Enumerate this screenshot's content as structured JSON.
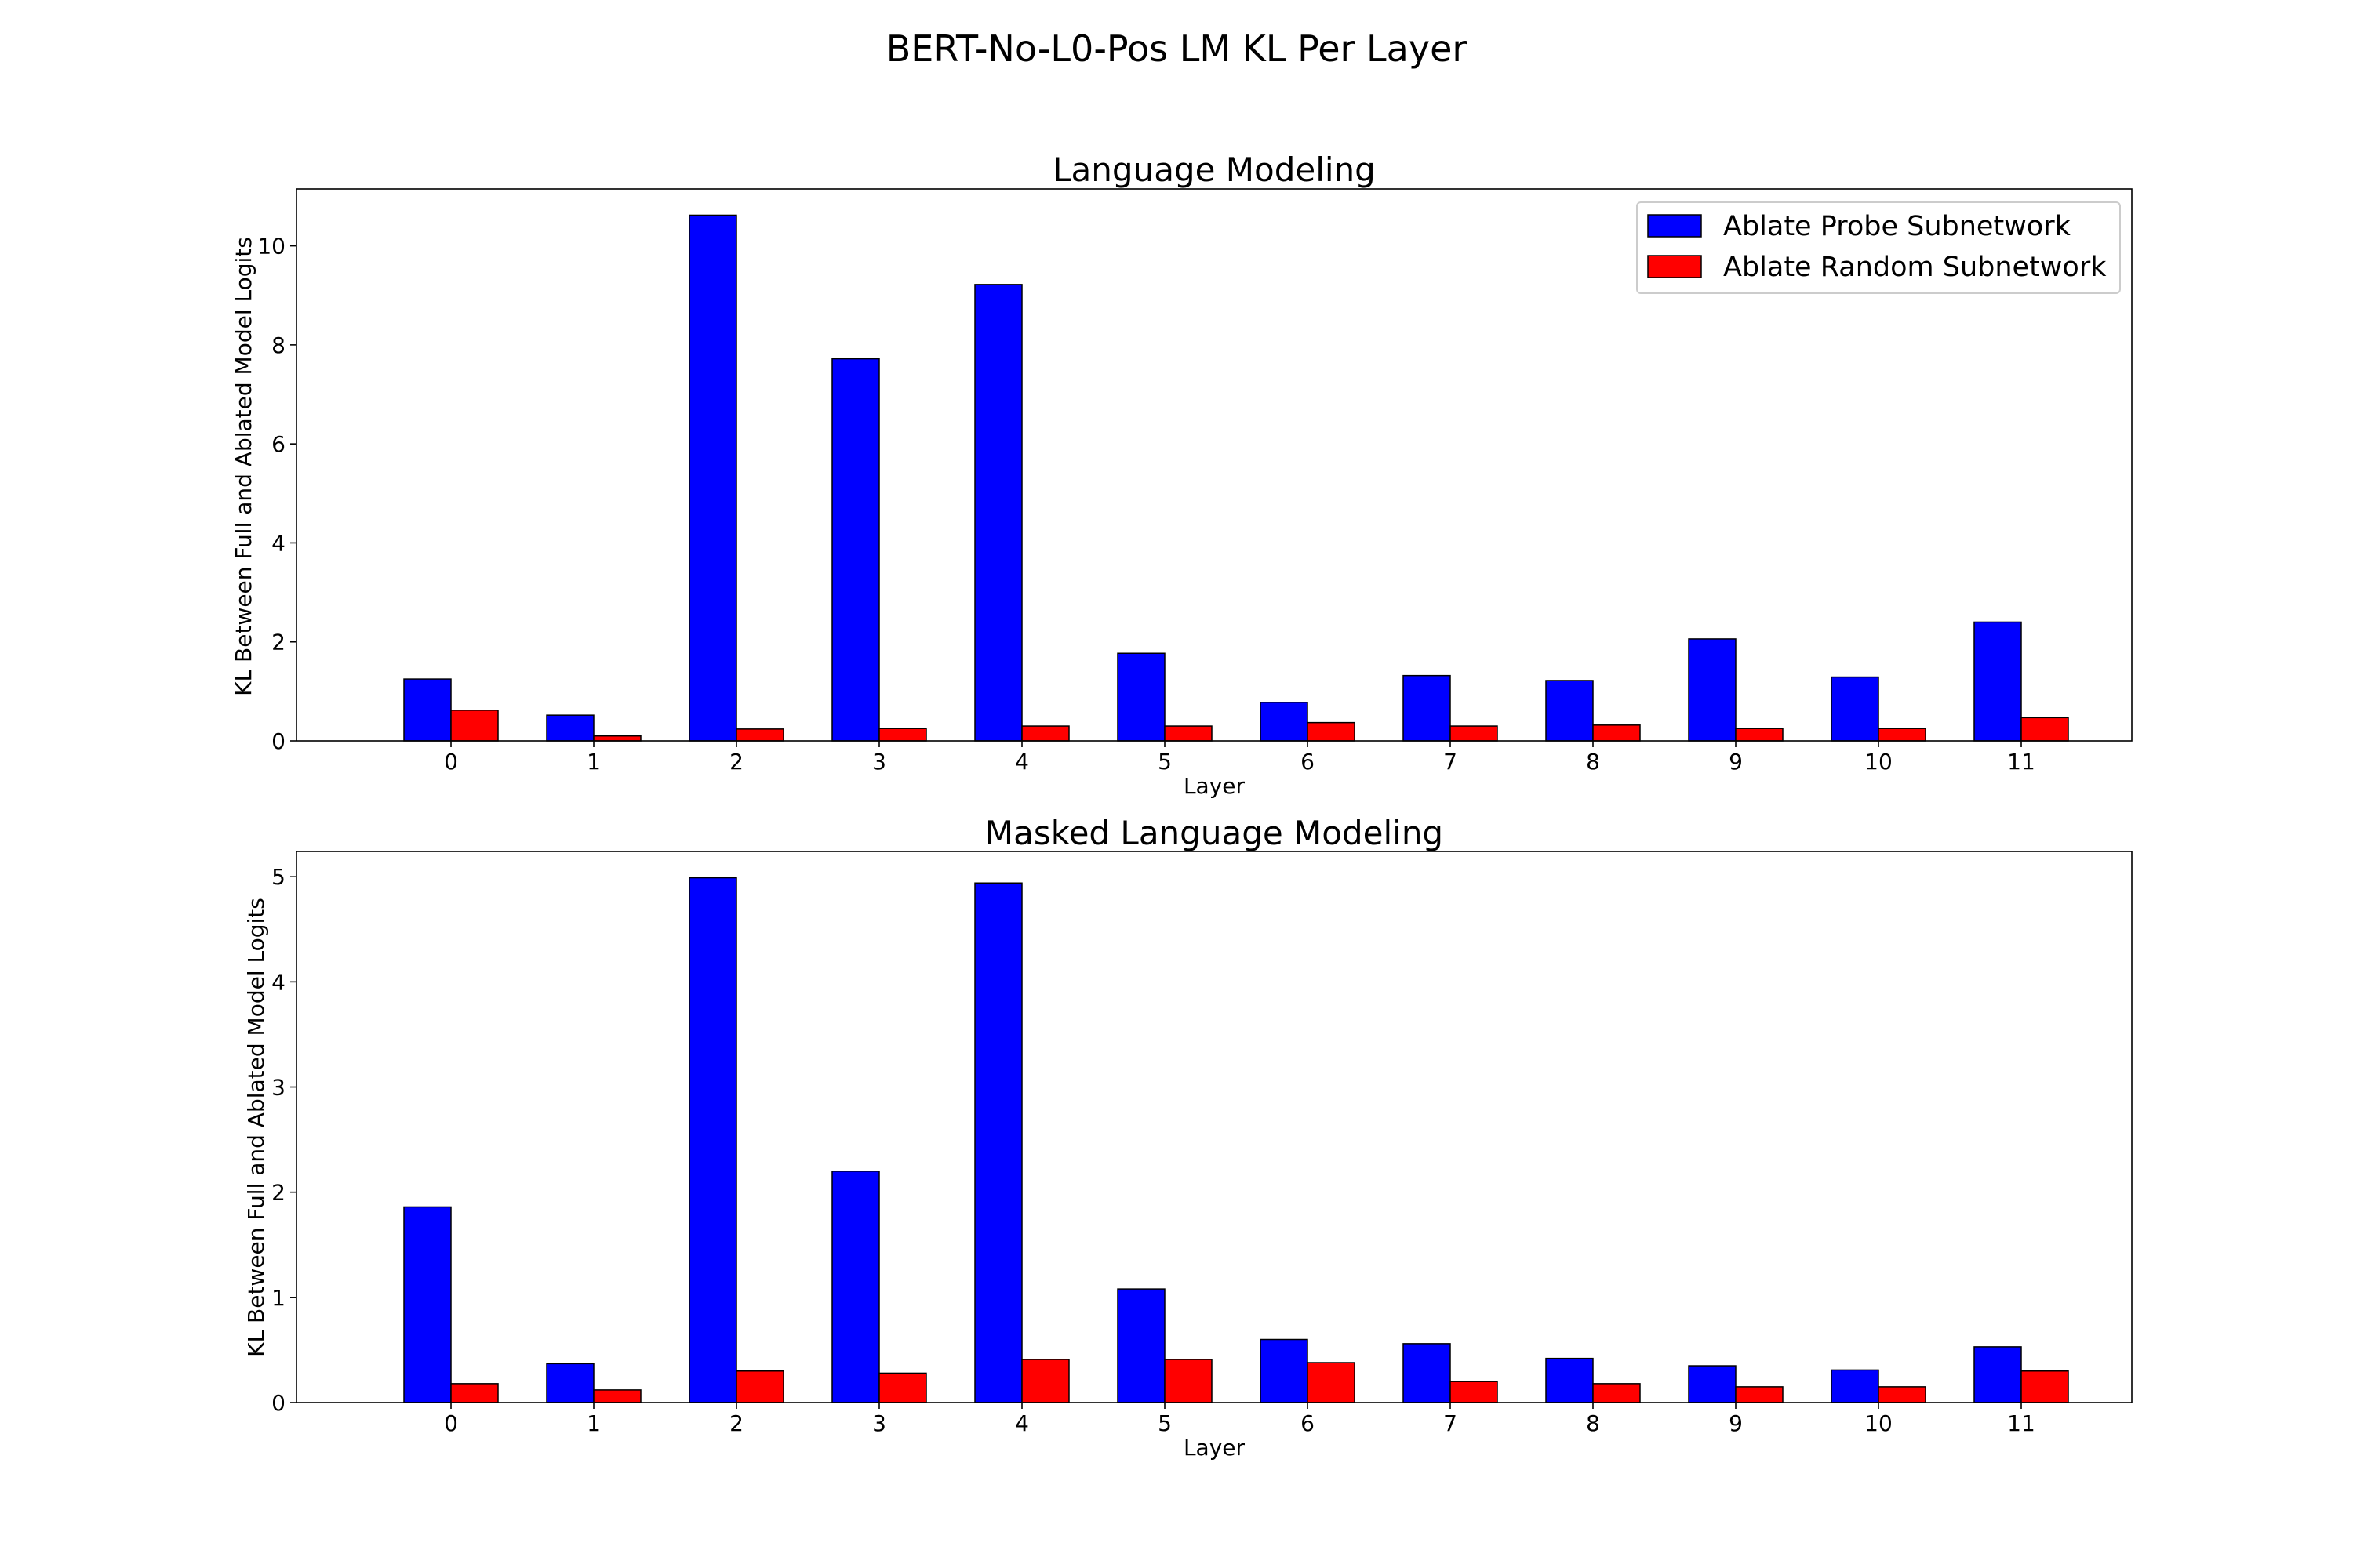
{
  "figure": {
    "suptitle": "BERT-No-L0-Pos LM KL Per Layer"
  },
  "chart_data": [
    {
      "type": "bar",
      "title": "Language Modeling",
      "xlabel": "Layer",
      "ylabel": "KL Between Full and Ablated Model Logits",
      "categories": [
        "0",
        "1",
        "2",
        "3",
        "4",
        "5",
        "6",
        "7",
        "8",
        "9",
        "10",
        "11"
      ],
      "ylim": [
        0,
        11.15
      ],
      "yticks": [
        0,
        2,
        4,
        6,
        8,
        10
      ],
      "legend": {
        "placement": "top-right"
      },
      "series": [
        {
          "name": "Ablate Probe Subnetwork",
          "color": "#0000ff",
          "values": [
            1.25,
            0.52,
            10.62,
            7.72,
            9.22,
            1.77,
            0.78,
            1.32,
            1.22,
            2.06,
            1.29,
            2.4
          ]
        },
        {
          "name": "Ablate Random Subnetwork",
          "color": "#ff0000",
          "values": [
            0.62,
            0.1,
            0.24,
            0.25,
            0.3,
            0.3,
            0.37,
            0.3,
            0.32,
            0.25,
            0.25,
            0.47
          ]
        }
      ]
    },
    {
      "type": "bar",
      "title": "Masked Language Modeling",
      "xlabel": "Layer",
      "ylabel": "KL Between Full and Ablated Model Logits",
      "categories": [
        "0",
        "1",
        "2",
        "3",
        "4",
        "5",
        "6",
        "7",
        "8",
        "9",
        "10",
        "11"
      ],
      "ylim": [
        0,
        5.24
      ],
      "yticks": [
        0,
        1,
        2,
        3,
        4,
        5
      ],
      "series": [
        {
          "name": "Ablate Probe Subnetwork",
          "color": "#0000ff",
          "values": [
            1.86,
            0.37,
            4.99,
            2.2,
            4.94,
            1.08,
            0.6,
            0.56,
            0.42,
            0.35,
            0.31,
            0.53
          ]
        },
        {
          "name": "Ablate Random Subnetwork",
          "color": "#ff0000",
          "values": [
            0.18,
            0.12,
            0.3,
            0.28,
            0.41,
            0.41,
            0.38,
            0.2,
            0.18,
            0.15,
            0.15,
            0.3
          ]
        }
      ]
    }
  ]
}
